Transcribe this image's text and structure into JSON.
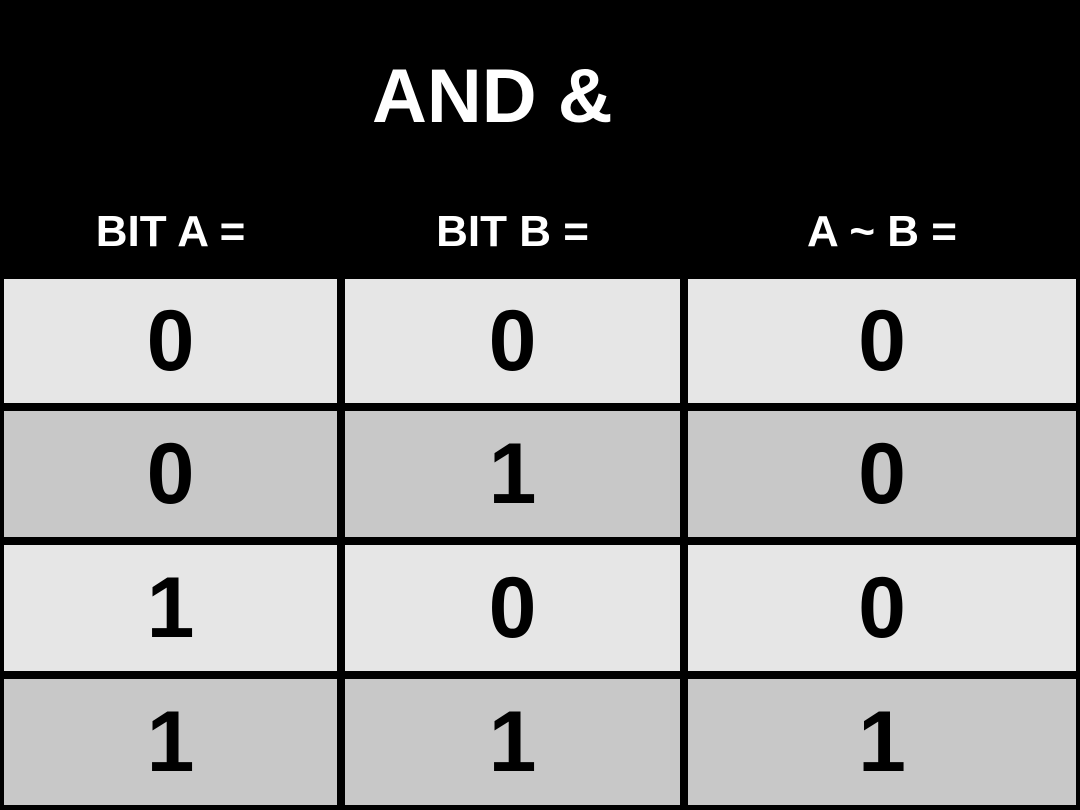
{
  "title": "AND &",
  "headers": [
    "BIT A =",
    "BIT B =",
    "A ~ B ="
  ],
  "rows": [
    [
      "0",
      "0",
      "0"
    ],
    [
      "0",
      "1",
      "0"
    ],
    [
      "1",
      "0",
      "0"
    ],
    [
      "1",
      "1",
      "1"
    ]
  ],
  "colors": {
    "background": "#000000",
    "header_text": "#ffffff",
    "row_light": "#e6e6e6",
    "row_dark": "#c8c8c8",
    "cell_text": "#000000"
  }
}
